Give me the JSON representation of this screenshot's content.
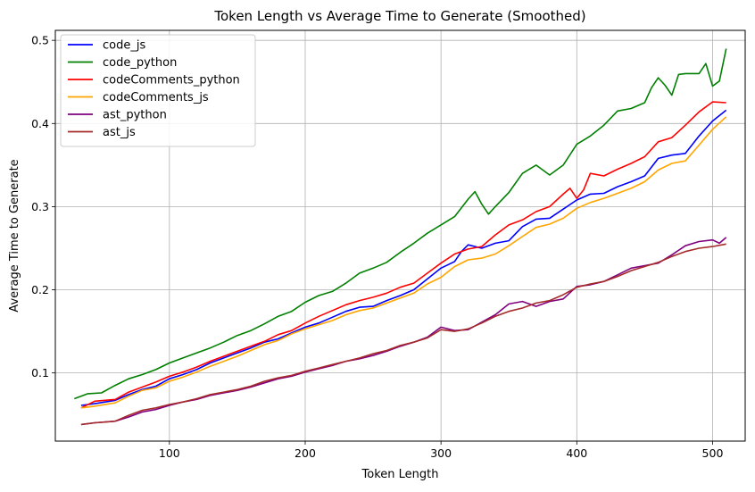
{
  "chart_data": {
    "type": "line",
    "title": "Token Length vs Average Time to Generate (Smoothed)",
    "xlabel": "Token Length",
    "ylabel": "Average Time to Generate",
    "xlim": [
      16,
      524
    ],
    "ylim": [
      0.018,
      0.512
    ],
    "x_ticks": [
      100,
      200,
      300,
      400,
      500
    ],
    "y_ticks": [
      0.1,
      0.2,
      0.3,
      0.4,
      0.5
    ],
    "grid": true,
    "legend": "top-left",
    "series": [
      {
        "name": "code_js",
        "color": "#0000ff",
        "points": [
          [
            35,
            0.061
          ],
          [
            45,
            0.063
          ],
          [
            60,
            0.067
          ],
          [
            70,
            0.074
          ],
          [
            80,
            0.08
          ],
          [
            90,
            0.084
          ],
          [
            100,
            0.093
          ],
          [
            110,
            0.098
          ],
          [
            120,
            0.104
          ],
          [
            130,
            0.112
          ],
          [
            140,
            0.118
          ],
          [
            150,
            0.124
          ],
          [
            160,
            0.13
          ],
          [
            170,
            0.137
          ],
          [
            180,
            0.141
          ],
          [
            190,
            0.148
          ],
          [
            200,
            0.155
          ],
          [
            210,
            0.16
          ],
          [
            220,
            0.167
          ],
          [
            230,
            0.174
          ],
          [
            240,
            0.179
          ],
          [
            250,
            0.18
          ],
          [
            260,
            0.187
          ],
          [
            270,
            0.193
          ],
          [
            280,
            0.2
          ],
          [
            290,
            0.213
          ],
          [
            300,
            0.226
          ],
          [
            310,
            0.234
          ],
          [
            315,
            0.246
          ],
          [
            320,
            0.254
          ],
          [
            330,
            0.25
          ],
          [
            340,
            0.256
          ],
          [
            350,
            0.259
          ],
          [
            360,
            0.276
          ],
          [
            370,
            0.285
          ],
          [
            380,
            0.286
          ],
          [
            390,
            0.297
          ],
          [
            400,
            0.308
          ],
          [
            410,
            0.315
          ],
          [
            420,
            0.316
          ],
          [
            430,
            0.324
          ],
          [
            440,
            0.33
          ],
          [
            450,
            0.337
          ],
          [
            460,
            0.358
          ],
          [
            470,
            0.362
          ],
          [
            480,
            0.364
          ],
          [
            490,
            0.385
          ],
          [
            500,
            0.403
          ],
          [
            510,
            0.416
          ]
        ]
      },
      {
        "name": "code_python",
        "color": "#008000",
        "points": [
          [
            30,
            0.069
          ],
          [
            40,
            0.075
          ],
          [
            50,
            0.076
          ],
          [
            60,
            0.085
          ],
          [
            70,
            0.093
          ],
          [
            80,
            0.098
          ],
          [
            90,
            0.104
          ],
          [
            100,
            0.112
          ],
          [
            110,
            0.118
          ],
          [
            120,
            0.124
          ],
          [
            130,
            0.13
          ],
          [
            140,
            0.137
          ],
          [
            150,
            0.145
          ],
          [
            160,
            0.151
          ],
          [
            170,
            0.159
          ],
          [
            180,
            0.168
          ],
          [
            190,
            0.174
          ],
          [
            200,
            0.185
          ],
          [
            210,
            0.193
          ],
          [
            220,
            0.198
          ],
          [
            230,
            0.208
          ],
          [
            240,
            0.22
          ],
          [
            250,
            0.226
          ],
          [
            260,
            0.233
          ],
          [
            270,
            0.245
          ],
          [
            280,
            0.256
          ],
          [
            290,
            0.268
          ],
          [
            300,
            0.278
          ],
          [
            310,
            0.288
          ],
          [
            320,
            0.309
          ],
          [
            325,
            0.318
          ],
          [
            330,
            0.303
          ],
          [
            335,
            0.291
          ],
          [
            340,
            0.3
          ],
          [
            350,
            0.317
          ],
          [
            360,
            0.34
          ],
          [
            370,
            0.35
          ],
          [
            380,
            0.338
          ],
          [
            390,
            0.35
          ],
          [
            400,
            0.375
          ],
          [
            410,
            0.385
          ],
          [
            420,
            0.398
          ],
          [
            430,
            0.415
          ],
          [
            440,
            0.418
          ],
          [
            450,
            0.425
          ],
          [
            455,
            0.443
          ],
          [
            460,
            0.455
          ],
          [
            465,
            0.446
          ],
          [
            470,
            0.434
          ],
          [
            475,
            0.459
          ],
          [
            480,
            0.46
          ],
          [
            490,
            0.46
          ],
          [
            495,
            0.472
          ],
          [
            500,
            0.445
          ],
          [
            505,
            0.451
          ],
          [
            510,
            0.49
          ]
        ]
      },
      {
        "name": "codeComments_python",
        "color": "#ff0000",
        "points": [
          [
            35,
            0.058
          ],
          [
            45,
            0.066
          ],
          [
            60,
            0.068
          ],
          [
            70,
            0.077
          ],
          [
            80,
            0.083
          ],
          [
            90,
            0.089
          ],
          [
            100,
            0.096
          ],
          [
            110,
            0.101
          ],
          [
            120,
            0.107
          ],
          [
            130,
            0.114
          ],
          [
            140,
            0.12
          ],
          [
            150,
            0.126
          ],
          [
            160,
            0.132
          ],
          [
            170,
            0.138
          ],
          [
            180,
            0.146
          ],
          [
            190,
            0.151
          ],
          [
            200,
            0.16
          ],
          [
            210,
            0.168
          ],
          [
            220,
            0.175
          ],
          [
            230,
            0.182
          ],
          [
            240,
            0.187
          ],
          [
            250,
            0.191
          ],
          [
            260,
            0.196
          ],
          [
            270,
            0.203
          ],
          [
            280,
            0.208
          ],
          [
            290,
            0.22
          ],
          [
            300,
            0.232
          ],
          [
            310,
            0.243
          ],
          [
            320,
            0.249
          ],
          [
            330,
            0.252
          ],
          [
            340,
            0.266
          ],
          [
            350,
            0.278
          ],
          [
            360,
            0.284
          ],
          [
            370,
            0.294
          ],
          [
            380,
            0.3
          ],
          [
            390,
            0.315
          ],
          [
            395,
            0.322
          ],
          [
            400,
            0.31
          ],
          [
            405,
            0.32
          ],
          [
            410,
            0.34
          ],
          [
            420,
            0.337
          ],
          [
            430,
            0.345
          ],
          [
            440,
            0.352
          ],
          [
            450,
            0.36
          ],
          [
            460,
            0.378
          ],
          [
            470,
            0.383
          ],
          [
            480,
            0.398
          ],
          [
            490,
            0.414
          ],
          [
            500,
            0.426
          ],
          [
            510,
            0.425
          ]
        ]
      },
      {
        "name": "codeComments_js",
        "color": "#ffa500",
        "points": [
          [
            35,
            0.058
          ],
          [
            45,
            0.06
          ],
          [
            60,
            0.064
          ],
          [
            70,
            0.072
          ],
          [
            80,
            0.079
          ],
          [
            90,
            0.082
          ],
          [
            100,
            0.09
          ],
          [
            110,
            0.095
          ],
          [
            120,
            0.101
          ],
          [
            130,
            0.108
          ],
          [
            140,
            0.114
          ],
          [
            150,
            0.12
          ],
          [
            160,
            0.127
          ],
          [
            170,
            0.134
          ],
          [
            180,
            0.139
          ],
          [
            190,
            0.147
          ],
          [
            200,
            0.153
          ],
          [
            210,
            0.158
          ],
          [
            220,
            0.163
          ],
          [
            230,
            0.17
          ],
          [
            240,
            0.175
          ],
          [
            250,
            0.178
          ],
          [
            260,
            0.184
          ],
          [
            270,
            0.19
          ],
          [
            280,
            0.196
          ],
          [
            290,
            0.207
          ],
          [
            300,
            0.215
          ],
          [
            310,
            0.228
          ],
          [
            320,
            0.236
          ],
          [
            330,
            0.238
          ],
          [
            340,
            0.243
          ],
          [
            350,
            0.253
          ],
          [
            360,
            0.264
          ],
          [
            370,
            0.275
          ],
          [
            380,
            0.279
          ],
          [
            390,
            0.286
          ],
          [
            400,
            0.298
          ],
          [
            410,
            0.305
          ],
          [
            420,
            0.31
          ],
          [
            430,
            0.316
          ],
          [
            440,
            0.322
          ],
          [
            450,
            0.33
          ],
          [
            460,
            0.344
          ],
          [
            470,
            0.352
          ],
          [
            480,
            0.355
          ],
          [
            490,
            0.374
          ],
          [
            500,
            0.393
          ],
          [
            510,
            0.408
          ]
        ]
      },
      {
        "name": "ast_python",
        "color": "#800080",
        "points": [
          [
            35,
            0.038
          ],
          [
            45,
            0.04
          ],
          [
            60,
            0.042
          ],
          [
            70,
            0.047
          ],
          [
            80,
            0.053
          ],
          [
            90,
            0.056
          ],
          [
            100,
            0.061
          ],
          [
            110,
            0.065
          ],
          [
            120,
            0.068
          ],
          [
            130,
            0.073
          ],
          [
            140,
            0.076
          ],
          [
            150,
            0.079
          ],
          [
            160,
            0.083
          ],
          [
            170,
            0.088
          ],
          [
            180,
            0.093
          ],
          [
            190,
            0.096
          ],
          [
            200,
            0.101
          ],
          [
            210,
            0.105
          ],
          [
            220,
            0.109
          ],
          [
            230,
            0.114
          ],
          [
            240,
            0.117
          ],
          [
            250,
            0.121
          ],
          [
            260,
            0.126
          ],
          [
            270,
            0.132
          ],
          [
            280,
            0.137
          ],
          [
            290,
            0.143
          ],
          [
            300,
            0.155
          ],
          [
            310,
            0.151
          ],
          [
            320,
            0.152
          ],
          [
            330,
            0.161
          ],
          [
            340,
            0.17
          ],
          [
            350,
            0.183
          ],
          [
            360,
            0.186
          ],
          [
            370,
            0.18
          ],
          [
            380,
            0.186
          ],
          [
            390,
            0.189
          ],
          [
            400,
            0.204
          ],
          [
            410,
            0.206
          ],
          [
            420,
            0.21
          ],
          [
            430,
            0.218
          ],
          [
            440,
            0.226
          ],
          [
            450,
            0.229
          ],
          [
            460,
            0.232
          ],
          [
            470,
            0.242
          ],
          [
            480,
            0.253
          ],
          [
            490,
            0.258
          ],
          [
            500,
            0.26
          ],
          [
            505,
            0.256
          ],
          [
            510,
            0.263
          ]
        ]
      },
      {
        "name": "ast_js",
        "color": "#a52a2a",
        "points": [
          [
            35,
            0.038
          ],
          [
            45,
            0.04
          ],
          [
            60,
            0.042
          ],
          [
            70,
            0.049
          ],
          [
            80,
            0.055
          ],
          [
            90,
            0.058
          ],
          [
            100,
            0.062
          ],
          [
            110,
            0.065
          ],
          [
            120,
            0.069
          ],
          [
            130,
            0.074
          ],
          [
            140,
            0.077
          ],
          [
            150,
            0.08
          ],
          [
            160,
            0.084
          ],
          [
            170,
            0.09
          ],
          [
            180,
            0.094
          ],
          [
            190,
            0.097
          ],
          [
            200,
            0.102
          ],
          [
            210,
            0.106
          ],
          [
            220,
            0.11
          ],
          [
            230,
            0.114
          ],
          [
            240,
            0.118
          ],
          [
            250,
            0.123
          ],
          [
            260,
            0.127
          ],
          [
            270,
            0.133
          ],
          [
            280,
            0.137
          ],
          [
            290,
            0.142
          ],
          [
            300,
            0.152
          ],
          [
            310,
            0.15
          ],
          [
            320,
            0.153
          ],
          [
            330,
            0.16
          ],
          [
            340,
            0.168
          ],
          [
            350,
            0.174
          ],
          [
            360,
            0.178
          ],
          [
            370,
            0.184
          ],
          [
            380,
            0.187
          ],
          [
            390,
            0.194
          ],
          [
            400,
            0.203
          ],
          [
            410,
            0.207
          ],
          [
            420,
            0.21
          ],
          [
            430,
            0.216
          ],
          [
            440,
            0.223
          ],
          [
            450,
            0.228
          ],
          [
            460,
            0.233
          ],
          [
            470,
            0.24
          ],
          [
            480,
            0.246
          ],
          [
            490,
            0.25
          ],
          [
            500,
            0.252
          ],
          [
            510,
            0.255
          ]
        ]
      }
    ]
  }
}
